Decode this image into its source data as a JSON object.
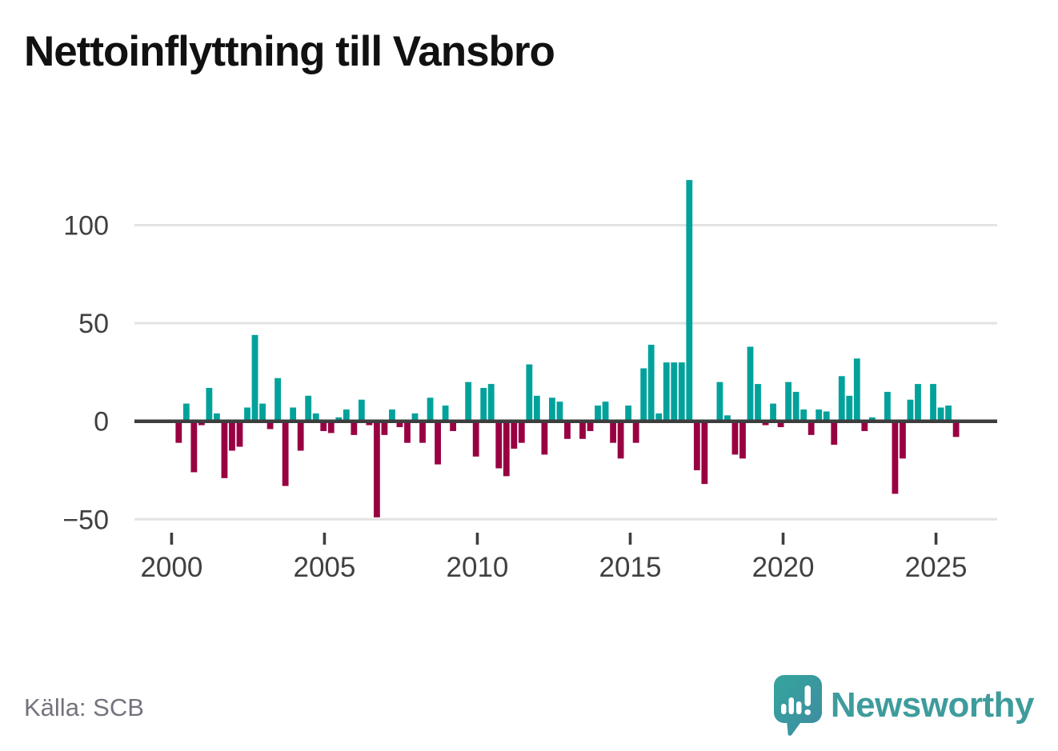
{
  "header": {
    "title": "Nettoinflyttning till Vansbro"
  },
  "footer": {
    "source_label": "Källa: SCB",
    "brand": "Newsworthy"
  },
  "colors": {
    "positive": "#00a29b",
    "negative": "#990042",
    "gridline": "#e3e3e3",
    "zero_line": "#3d3d3d",
    "axis_text": "#404040",
    "tick_mark": "#3f3f3f",
    "source_text": "#73737d",
    "brand_teal": "#3e9c9c",
    "logo_teal_light": "#35a59d",
    "logo_teal_dark": "#3e8ba1",
    "background": "#ffffff",
    "title_text": "#111111"
  },
  "chart_data": {
    "type": "bar",
    "title": "Nettoinflyttning till Vansbro",
    "frequency": "quarterly",
    "start_year": 2000,
    "start_quarter": 1,
    "end_year": 2025,
    "end_quarter": 3,
    "x_tick_years": [
      2000,
      2005,
      2010,
      2015,
      2020,
      2025
    ],
    "x_tick_labels": [
      "2000",
      "2005",
      "2010",
      "2015",
      "2020",
      "2025"
    ],
    "y_ticks": [
      100,
      50,
      0,
      -50
    ],
    "y_tick_labels": [
      "100",
      "50",
      "0",
      "−50"
    ],
    "ylim": [
      -62,
      137
    ],
    "grid": true,
    "legend_position": "none",
    "positive_color": "#00a29b",
    "negative_color": "#990042",
    "series": [
      {
        "name": "Nettoinflyttning",
        "values": [
          -11,
          9,
          -26,
          -2,
          17,
          4,
          -29,
          -15,
          -13,
          7,
          44,
          9,
          -4,
          22,
          -33,
          7,
          -15,
          13,
          4,
          -5,
          -6,
          2,
          6,
          -7,
          11,
          -2,
          -49,
          -7,
          6,
          -3,
          -11,
          4,
          -11,
          12,
          -22,
          8,
          -5,
          0,
          20,
          -18,
          17,
          19,
          -24,
          -28,
          -14,
          -11,
          29,
          13,
          -17,
          12,
          10,
          -9,
          0,
          -9,
          -5,
          8,
          10,
          -11,
          -19,
          8,
          -11,
          27,
          39,
          4,
          30,
          30,
          30,
          123,
          -25,
          -32,
          0,
          20,
          3,
          -17,
          -19,
          38,
          19,
          -2,
          9,
          -3,
          20,
          15,
          6,
          -7,
          6,
          5,
          -12,
          23,
          13,
          32,
          -5,
          2,
          0,
          15,
          -37,
          -19,
          11,
          19,
          0,
          19,
          7,
          8,
          -8
        ]
      }
    ]
  }
}
